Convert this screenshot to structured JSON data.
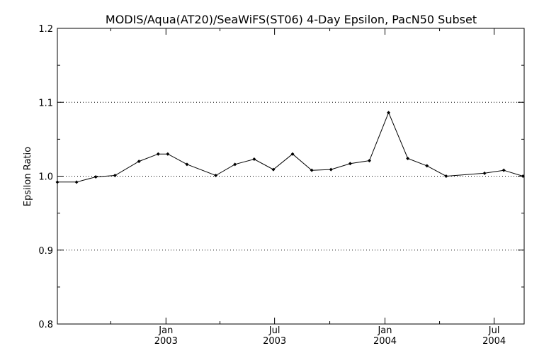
{
  "chart_data": {
    "type": "line",
    "title": "MODIS/Aqua(AT20)/SeaWiFS(ST06) 4-Day Epsilon, PacN50 Subset",
    "xlabel": "",
    "ylabel": "Epsilon Ratio",
    "ylim": [
      0.8,
      1.2
    ],
    "yticks": [
      "0.8",
      "0.9",
      "1.0",
      "1.1",
      "1.2"
    ],
    "grid": "horizontal dotted at 0.9, 1.0, 1.1",
    "x_ticks": [
      {
        "month": "Jan",
        "year": "2003",
        "date": "2003-01-01"
      },
      {
        "month": "Jul",
        "year": "2003",
        "date": "2003-07-01"
      },
      {
        "month": "Jan",
        "year": "2004",
        "date": "2004-01-01"
      },
      {
        "month": "Jul",
        "year": "2004",
        "date": "2004-07-01"
      }
    ],
    "xlim": [
      "2002-07-04",
      "2004-08-20"
    ],
    "series": [
      {
        "points": [
          {
            "x": "2002-07-04",
            "y": 0.992
          },
          {
            "x": "2002-08-05",
            "y": 0.992
          },
          {
            "x": "2002-09-06",
            "y": 0.999
          },
          {
            "x": "2002-10-08",
            "y": 1.001
          },
          {
            "x": "2002-11-17",
            "y": 1.02
          },
          {
            "x": "2002-12-19",
            "y": 1.03
          },
          {
            "x": "2003-01-04",
            "y": 1.03
          },
          {
            "x": "2003-02-05",
            "y": 1.016
          },
          {
            "x": "2003-03-25",
            "y": 1.001
          },
          {
            "x": "2003-04-26",
            "y": 1.016
          },
          {
            "x": "2003-05-28",
            "y": 1.023
          },
          {
            "x": "2003-06-29",
            "y": 1.009
          },
          {
            "x": "2003-07-31",
            "y": 1.03
          },
          {
            "x": "2003-09-01",
            "y": 1.008
          },
          {
            "x": "2003-10-03",
            "y": 1.009
          },
          {
            "x": "2003-11-04",
            "y": 1.017
          },
          {
            "x": "2003-12-06",
            "y": 1.021
          },
          {
            "x": "2004-01-07",
            "y": 1.086
          },
          {
            "x": "2004-02-08",
            "y": 1.024
          },
          {
            "x": "2004-03-11",
            "y": 1.014
          },
          {
            "x": "2004-04-12",
            "y": 1.0
          },
          {
            "x": "2004-06-15",
            "y": 1.004
          },
          {
            "x": "2004-07-17",
            "y": 1.008
          },
          {
            "x": "2004-08-18",
            "y": 1.0
          }
        ]
      }
    ]
  }
}
